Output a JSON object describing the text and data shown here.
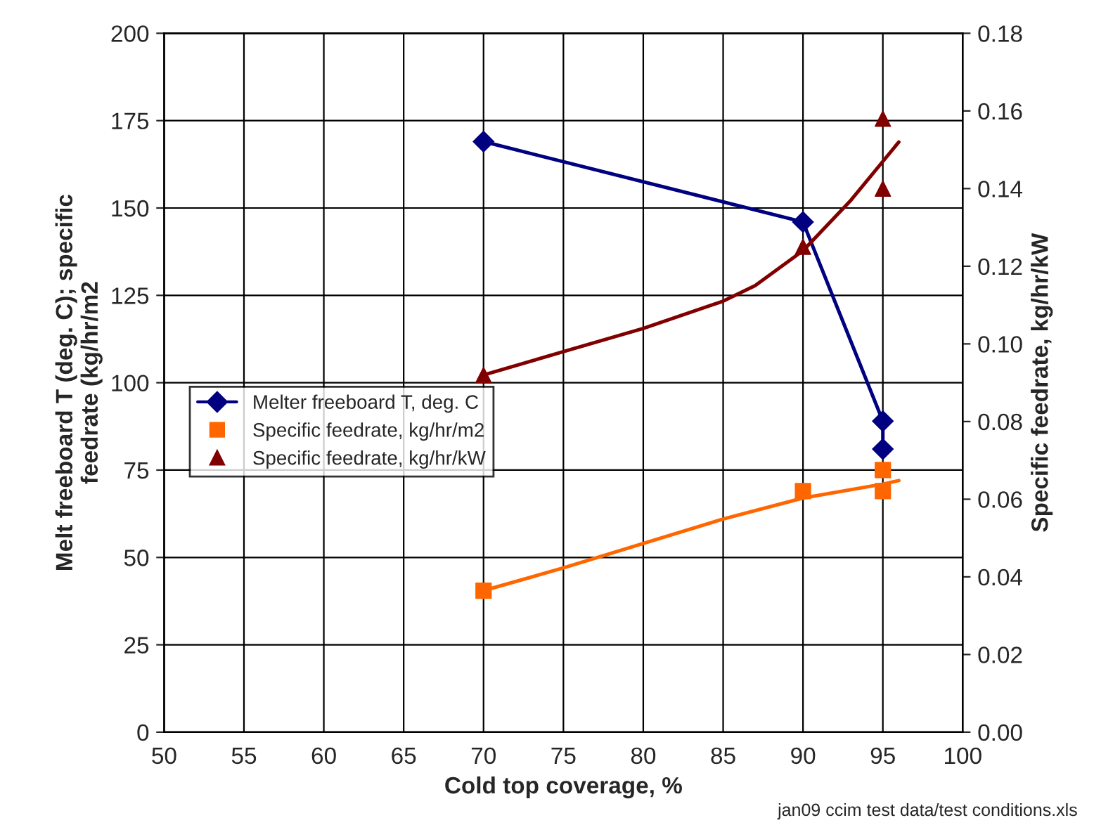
{
  "chart_data": {
    "type": "line",
    "xlabel": "Cold top coverage, %",
    "ylabel": "Melt freeboard T (deg. C); specific\nfeedrate (kg/hr/m2",
    "y2label": "Specific feedrate, kg/hr/kW",
    "xlim": [
      50,
      100
    ],
    "xticks": [
      50,
      55,
      60,
      65,
      70,
      75,
      80,
      85,
      90,
      95,
      100
    ],
    "ylim": [
      0,
      200
    ],
    "yticks": [
      0,
      25,
      50,
      75,
      100,
      125,
      150,
      175,
      200
    ],
    "y2lim": [
      0,
      0.18
    ],
    "y2ticks": [
      {
        "value": 0,
        "label": "0.00"
      },
      {
        "value": 0.02,
        "label": "0.02"
      },
      {
        "value": 0.04,
        "label": "0.04"
      },
      {
        "value": 0.06,
        "label": "0.06"
      },
      {
        "value": 0.08,
        "label": "0.08"
      },
      {
        "value": 0.1,
        "label": "0.10"
      },
      {
        "value": 0.12,
        "label": "0.12"
      },
      {
        "value": 0.14,
        "label": "0.14"
      },
      {
        "value": 0.16,
        "label": "0.16"
      },
      {
        "value": 0.18,
        "label": "0.18"
      }
    ],
    "grid": true,
    "legend": "center left",
    "series": [
      {
        "name": "Melter freeboard T, deg. C",
        "color": "#000080",
        "marker": "diamond",
        "x": [
          70,
          90,
          95,
          95
        ],
        "values": [
          169,
          146,
          89,
          81
        ]
      },
      {
        "name": "Specific feedrate, kg/hr/m2",
        "type": "scatter",
        "color": "#ff6600",
        "marker": "square",
        "x": [
          70,
          90,
          95,
          95
        ],
        "values": [
          40.5,
          69,
          75,
          69
        ]
      },
      {
        "name": "Specific feedrate, kg/hr/kW",
        "type": "scatter",
        "color": "#800000",
        "marker": "triangle",
        "axis": "y2",
        "x": [
          70,
          90,
          95,
          95
        ],
        "values": [
          0.092,
          0.125,
          0.158,
          0.14
        ]
      },
      {
        "color": "#ff6600",
        "marker": "none",
        "x": [
          70,
          75,
          80,
          85,
          90,
          95,
          96
        ],
        "values": [
          40.5,
          47,
          54,
          61,
          67,
          71,
          72
        ]
      },
      {
        "color": "#800000",
        "marker": "none",
        "axis": "y2",
        "x": [
          70,
          75,
          80,
          85,
          87,
          90,
          93,
          96
        ],
        "values": [
          0.092,
          0.098,
          0.104,
          0.111,
          0.115,
          0.124,
          0.137,
          0.152
        ]
      }
    ],
    "annotations": [
      "jan09 ccim test data/test conditions.xls"
    ]
  }
}
